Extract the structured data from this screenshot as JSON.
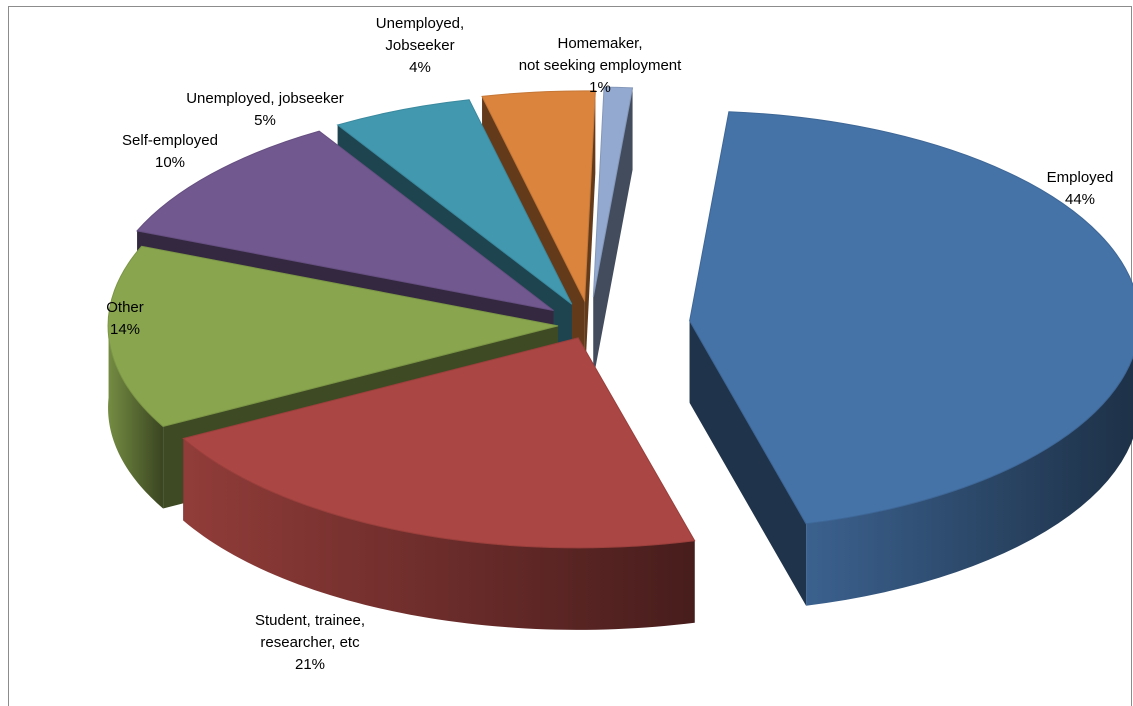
{
  "chart_data": {
    "type": "pie",
    "title": "",
    "slices": [
      {
        "label": "Employed",
        "lines": [
          "Employed"
        ],
        "percent_label": "44%",
        "value": 44,
        "color": "#4572a7"
      },
      {
        "label": "Student, trainee, researcher, etc",
        "lines": [
          "Student, trainee,",
          "researcher, etc"
        ],
        "percent_label": "21%",
        "value": 21,
        "color": "#aa4643"
      },
      {
        "label": "Other",
        "lines": [
          "Other"
        ],
        "percent_label": "14%",
        "value": 14,
        "color": "#89a54e"
      },
      {
        "label": "Self-employed",
        "lines": [
          "Self-employed"
        ],
        "percent_label": "10%",
        "value": 10,
        "color": "#71588f"
      },
      {
        "label": "Unemployed, jobseeker",
        "lines": [
          "Unemployed, jobseeker"
        ],
        "percent_label": "5%",
        "value": 5,
        "color": "#4198af"
      },
      {
        "label": "Unemployed, Jobseeker",
        "lines": [
          "Unemployed,",
          "Jobseeker"
        ],
        "percent_label": "4%",
        "value": 4,
        "color": "#db843d"
      },
      {
        "label": "Homemaker, not seeking employment",
        "lines": [
          "Homemaker,",
          "not seeking employment"
        ],
        "percent_label": "1%",
        "value": 1,
        "color": "#93a9cf"
      }
    ],
    "style": "3d-exploded",
    "legend": "none"
  }
}
